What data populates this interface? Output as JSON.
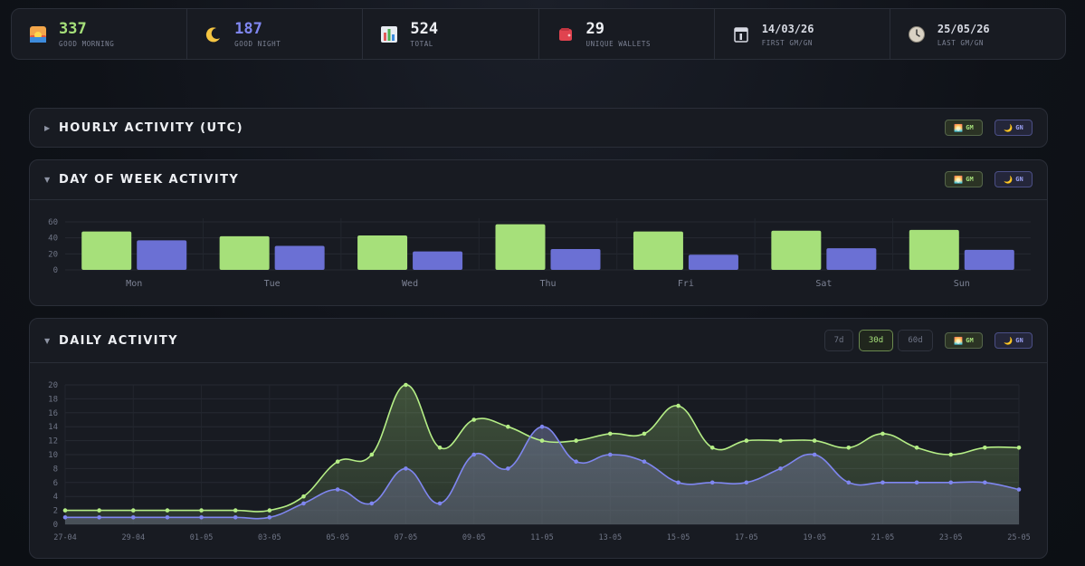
{
  "stats": [
    {
      "icon": "sunrise-icon",
      "value": "337",
      "label": "GOOD MORNING",
      "color": "#a6e07a"
    },
    {
      "icon": "moon-icon",
      "value": "187",
      "label": "GOOD NIGHT",
      "color": "#7f86f0"
    },
    {
      "icon": "bar-chart-icon",
      "value": "524",
      "label": "TOTAL",
      "color": "#eef0f4"
    },
    {
      "icon": "wallet-icon",
      "value": "29",
      "label": "UNIQUE WALLETS",
      "color": "#eef0f4"
    },
    {
      "icon": "calendar-icon",
      "value": "14/03/26",
      "label": "FIRST GM/GN",
      "color": "#d7dae3"
    },
    {
      "icon": "clock-icon",
      "value": "25/05/26",
      "label": "LAST GM/GN",
      "color": "#d7dae3"
    }
  ],
  "panels": {
    "hourly": {
      "title": "HOURLY ACTIVITY (UTC)",
      "caret": "▶"
    },
    "weekday": {
      "title": "DAY OF WEEK ACTIVITY",
      "caret": "▼"
    },
    "daily": {
      "title": "DAILY ACTIVITY",
      "caret": "▼",
      "ranges": [
        "7d",
        "30d",
        "60d"
      ],
      "active_range": "30d"
    }
  },
  "toggles": {
    "gm": "GM",
    "gn": "GN"
  },
  "colors": {
    "gm": "#a6e07a",
    "gn": "#6b70d4"
  },
  "chart_data": [
    {
      "type": "bar",
      "categories": [
        "Mon",
        "Tue",
        "Wed",
        "Thu",
        "Fri",
        "Sat",
        "Sun"
      ],
      "series": [
        {
          "name": "GM",
          "values": [
            48,
            42,
            43,
            57,
            48,
            49,
            50
          ]
        },
        {
          "name": "GN",
          "values": [
            37,
            30,
            23,
            26,
            19,
            27,
            25
          ]
        }
      ],
      "yticks": [
        0,
        20,
        40,
        60
      ],
      "ylim": [
        0,
        60
      ],
      "grid": true
    },
    {
      "type": "area",
      "x": [
        "27-04",
        "28-04",
        "29-04",
        "30-04",
        "01-05",
        "02-05",
        "03-05",
        "04-05",
        "05-05",
        "06-05",
        "07-05",
        "08-05",
        "09-05",
        "10-05",
        "11-05",
        "12-05",
        "13-05",
        "14-05",
        "15-05",
        "16-05",
        "17-05",
        "18-05",
        "19-05",
        "20-05",
        "21-05",
        "22-05",
        "23-05",
        "24-05",
        "25-05"
      ],
      "xtick_labels": [
        "27-04",
        "29-04",
        "01-05",
        "03-05",
        "05-05",
        "07-05",
        "09-05",
        "11-05",
        "13-05",
        "15-05",
        "17-05",
        "19-05",
        "21-05",
        "23-05",
        "25-05"
      ],
      "series": [
        {
          "name": "GM",
          "values": [
            2,
            2,
            2,
            2,
            2,
            2,
            2,
            4,
            9,
            10,
            20,
            11,
            15,
            14,
            12,
            12,
            13,
            13,
            17,
            11,
            12,
            12,
            12,
            11,
            13,
            11,
            10,
            11,
            11
          ]
        },
        {
          "name": "GN",
          "values": [
            1,
            1,
            1,
            1,
            1,
            1,
            1,
            3,
            5,
            3,
            8,
            3,
            10,
            8,
            14,
            9,
            10,
            9,
            6,
            6,
            6,
            8,
            10,
            6,
            6,
            6,
            6,
            6,
            5
          ]
        }
      ],
      "yticks": [
        0,
        2,
        4,
        6,
        8,
        10,
        12,
        14,
        16,
        18,
        20
      ],
      "ylim": [
        0,
        20
      ],
      "grid": true
    }
  ]
}
